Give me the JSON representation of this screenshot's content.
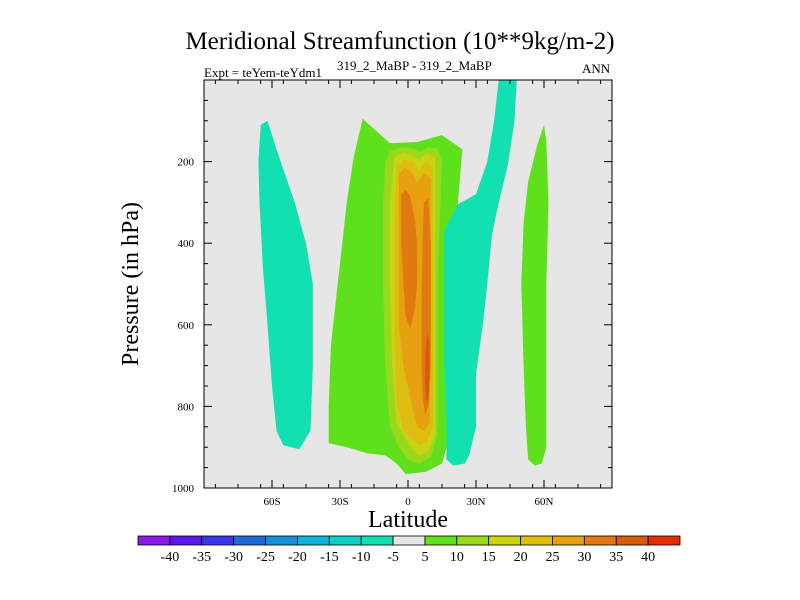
{
  "chart_data": {
    "type": "contour",
    "title": "Meridional Streamfunction (10**9kg/m-2)",
    "left_string": "Expt = teYem-teYdm1",
    "center_string": "319_2_MaBP - 319_2_MaBP",
    "right_string": "ANN",
    "xlabel": "Latitude",
    "ylabel": "Pressure (in hPa)",
    "xlim": [
      -90,
      90
    ],
    "ylim": [
      1000,
      0
    ],
    "x_ticks": [
      {
        "value": -60,
        "label": "60S"
      },
      {
        "value": -30,
        "label": "30S"
      },
      {
        "value": 0,
        "label": "0"
      },
      {
        "value": 30,
        "label": "30N"
      },
      {
        "value": 60,
        "label": "60N"
      }
    ],
    "y_ticks": [
      {
        "value": 200,
        "label": "200"
      },
      {
        "value": 400,
        "label": "400"
      },
      {
        "value": 600,
        "label": "600"
      },
      {
        "value": 800,
        "label": "800"
      },
      {
        "value": 1000,
        "label": "1000"
      }
    ],
    "contour_levels": [
      -40,
      -35,
      -30,
      -25,
      -20,
      -15,
      -10,
      -5,
      5,
      10,
      15,
      20,
      25,
      30,
      35,
      40
    ],
    "colorbar_colors": [
      "#8a19e6",
      "#5b19e6",
      "#3c37e6",
      "#1f6ad8",
      "#1392d6",
      "#10b2d8",
      "#11cfc4",
      "#12e0b0",
      "#e6e6e6",
      "#5ee01c",
      "#9ad81b",
      "#c8d414",
      "#ddbd10",
      "#e6a010",
      "#e07a10",
      "#d85a0a",
      "#e03000"
    ],
    "background_color": "#e6e6e6",
    "regions": [
      {
        "name": "sh-polar-cell",
        "value_range": "-10 to -5",
        "color": "#12e0b0",
        "outline": [
          [
            -65,
            110
          ],
          [
            -62,
            100
          ],
          [
            -58,
            170
          ],
          [
            -50,
            300
          ],
          [
            -45,
            400
          ],
          [
            -42,
            500
          ],
          [
            -42,
            700
          ],
          [
            -43,
            860
          ],
          [
            -48,
            905
          ],
          [
            -55,
            895
          ],
          [
            -58,
            860
          ],
          [
            -60,
            750
          ],
          [
            -62,
            600
          ],
          [
            -64,
            460
          ],
          [
            -65.5,
            300
          ],
          [
            -66,
            200
          ],
          [
            -65,
            110
          ]
        ]
      },
      {
        "name": "sh-ferrel-green",
        "value_range": "5 to 10",
        "color": "#5ee01c",
        "outline": [
          [
            -20,
            95
          ],
          [
            -8,
            155
          ],
          [
            4,
            152
          ],
          [
            15,
            135
          ],
          [
            24,
            170
          ],
          [
            22,
            300
          ],
          [
            18,
            500
          ],
          [
            18,
            700
          ],
          [
            19,
            860
          ],
          [
            15,
            940
          ],
          [
            8,
            960
          ],
          [
            -1,
            966
          ],
          [
            -5,
            940
          ],
          [
            -10,
            920
          ],
          [
            -18,
            915
          ],
          [
            -27,
            900
          ],
          [
            -35,
            890
          ],
          [
            -35,
            800
          ],
          [
            -34,
            650
          ],
          [
            -31,
            500
          ],
          [
            -27,
            300
          ],
          [
            -24,
            190
          ],
          [
            -20,
            95
          ]
        ]
      },
      {
        "name": "hadley-10",
        "value_range": "10 to 15",
        "color": "#9ad81b",
        "outline": [
          [
            -8,
            175
          ],
          [
            -3,
            165
          ],
          [
            2,
            167
          ],
          [
            5,
            175
          ],
          [
            9,
            165
          ],
          [
            13,
            168
          ],
          [
            15,
            200
          ],
          [
            14,
            350
          ],
          [
            13,
            500
          ],
          [
            13,
            700
          ],
          [
            13,
            870
          ],
          [
            10,
            925
          ],
          [
            5,
            940
          ],
          [
            0,
            930
          ],
          [
            -4,
            900
          ],
          [
            -8,
            850
          ],
          [
            -10,
            700
          ],
          [
            -11,
            500
          ],
          [
            -11,
            300
          ],
          [
            -10,
            200
          ],
          [
            -8,
            175
          ]
        ]
      },
      {
        "name": "hadley-15",
        "value_range": "15 to 20",
        "color": "#c8d414",
        "outline": [
          [
            -6,
            190
          ],
          [
            -2,
            178
          ],
          [
            2,
            185
          ],
          [
            5,
            195
          ],
          [
            8,
            180
          ],
          [
            12,
            190
          ],
          [
            12,
            300
          ],
          [
            12,
            500
          ],
          [
            12,
            700
          ],
          [
            12,
            870
          ],
          [
            9,
            910
          ],
          [
            5,
            920
          ],
          [
            2,
            905
          ],
          [
            -1,
            880
          ],
          [
            -5,
            840
          ],
          [
            -7,
            700
          ],
          [
            -8,
            500
          ],
          [
            -8,
            300
          ],
          [
            -6,
            190
          ]
        ]
      },
      {
        "name": "hadley-20",
        "value_range": "20 to 25",
        "color": "#ddbd10",
        "outline": [
          [
            -5,
            210
          ],
          [
            -2,
            195
          ],
          [
            2,
            200
          ],
          [
            5,
            220
          ],
          [
            8,
            202
          ],
          [
            11,
            215
          ],
          [
            11,
            350
          ],
          [
            11,
            500
          ],
          [
            11,
            700
          ],
          [
            11,
            850
          ],
          [
            8,
            890
          ],
          [
            5,
            895
          ],
          [
            2,
            880
          ],
          [
            -2,
            860
          ],
          [
            -5,
            790
          ],
          [
            -6,
            600
          ],
          [
            -6,
            400
          ],
          [
            -5,
            210
          ]
        ]
      },
      {
        "name": "hadley-25",
        "value_range": "25 to 30",
        "color": "#e6a010",
        "outline": [
          [
            -4,
            230
          ],
          [
            -1,
            215
          ],
          [
            2,
            230
          ],
          [
            4,
            250
          ],
          [
            7,
            230
          ],
          [
            10,
            240
          ],
          [
            10,
            400
          ],
          [
            10,
            550
          ],
          [
            10,
            700
          ],
          [
            9.5,
            840
          ],
          [
            7,
            860
          ],
          [
            4,
            850
          ],
          [
            1,
            780
          ],
          [
            -2,
            700
          ],
          [
            -4,
            600
          ],
          [
            -4,
            400
          ],
          [
            -4,
            230
          ]
        ]
      },
      {
        "name": "hadley-30",
        "value_range": "30 to 35",
        "color": "#e07a10",
        "outline": [
          [
            -3,
            280
          ],
          [
            -1,
            270
          ],
          [
            1,
            285
          ],
          [
            3,
            340
          ],
          [
            4,
            400
          ],
          [
            4,
            500
          ],
          [
            3,
            560
          ],
          [
            1,
            610
          ],
          [
            -1,
            580
          ],
          [
            -2,
            500
          ],
          [
            -3,
            400
          ],
          [
            -3,
            280
          ]
        ]
      },
      {
        "name": "hadley-30b",
        "value_range": "30 to 35",
        "color": "#e07a10",
        "outline": [
          [
            7,
            300
          ],
          [
            9,
            290
          ],
          [
            10,
            400
          ],
          [
            10,
            550
          ],
          [
            10,
            700
          ],
          [
            9,
            800
          ],
          [
            7.5,
            820
          ],
          [
            6.5,
            780
          ],
          [
            6,
            700
          ],
          [
            6,
            550
          ],
          [
            6.5,
            400
          ],
          [
            7,
            300
          ]
        ]
      },
      {
        "name": "hadley-35",
        "value_range": "35 to 40",
        "color": "#d85a0a",
        "outline": [
          [
            8.5,
            620
          ],
          [
            9.5,
            640
          ],
          [
            9.5,
            720
          ],
          [
            9,
            780
          ],
          [
            8,
            790
          ],
          [
            7.5,
            740
          ],
          [
            7.5,
            680
          ],
          [
            8.5,
            620
          ]
        ]
      },
      {
        "name": "nh-ferrel-cell",
        "value_range": "-10 to -5",
        "color": "#12e0b0",
        "outline": [
          [
            40,
            0
          ],
          [
            44,
            0
          ],
          [
            48,
            0
          ],
          [
            47,
            100
          ],
          [
            44,
            210
          ],
          [
            40,
            300
          ],
          [
            37,
            380
          ],
          [
            35,
            500
          ],
          [
            33,
            600
          ],
          [
            30,
            720
          ],
          [
            30,
            850
          ],
          [
            27,
            920
          ],
          [
            25,
            940
          ],
          [
            20,
            945
          ],
          [
            17,
            930
          ],
          [
            17,
            860
          ],
          [
            16,
            700
          ],
          [
            16,
            500
          ],
          [
            16,
            370
          ],
          [
            22,
            305
          ],
          [
            30,
            280
          ],
          [
            35,
            200
          ],
          [
            38,
            100
          ],
          [
            40,
            0
          ]
        ]
      },
      {
        "name": "nh-polar-green",
        "value_range": "5 to 10",
        "color": "#5ee01c",
        "outline": [
          [
            60,
            110
          ],
          [
            61,
            150
          ],
          [
            62,
            300
          ],
          [
            61,
            500
          ],
          [
            61,
            700
          ],
          [
            61,
            900
          ],
          [
            59,
            940
          ],
          [
            56,
            945
          ],
          [
            53,
            930
          ],
          [
            52,
            850
          ],
          [
            51,
            700
          ],
          [
            50,
            500
          ],
          [
            51,
            350
          ],
          [
            53,
            250
          ],
          [
            57,
            160
          ],
          [
            60,
            110
          ]
        ]
      }
    ]
  }
}
